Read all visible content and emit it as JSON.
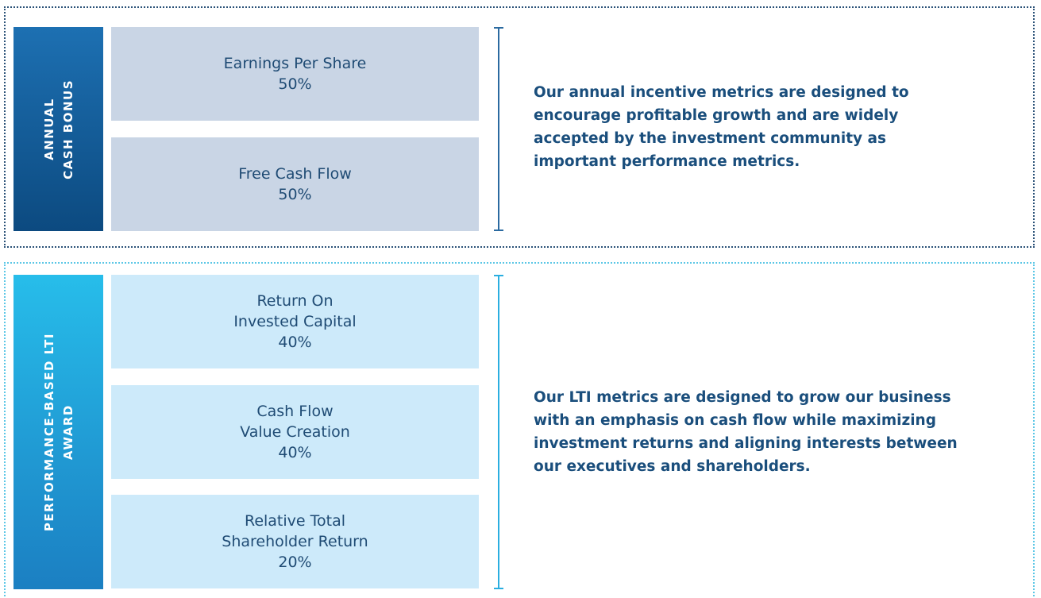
{
  "sections": [
    {
      "label": [
        "ANNUAL",
        "CASH BONUS"
      ],
      "metrics": [
        {
          "name": [
            "Earnings Per Share"
          ],
          "weight": "50%"
        },
        {
          "name": [
            "Free Cash Flow"
          ],
          "weight": "50%"
        }
      ],
      "description": [
        "Our annual incentive metrics are designed to",
        "encourage profitable growth and are widely",
        "accepted by the investment community as",
        "important performance metrics."
      ]
    },
    {
      "label": [
        "PERFORMANCE-BASED LTI",
        "AWARD"
      ],
      "metrics": [
        {
          "name": [
            "Return On",
            "Invested Capital"
          ],
          "weight": "40%"
        },
        {
          "name": [
            "Cash Flow",
            "Value Creation"
          ],
          "weight": "40%"
        },
        {
          "name": [
            "Relative Total",
            "Shareholder Return"
          ],
          "weight": "20%"
        }
      ],
      "description": [
        "Our LTI metrics are designed to grow our business",
        "with an emphasis on cash flow while maximizing",
        "investment returns and aligning interests between",
        "our executives and shareholders."
      ]
    }
  ]
}
